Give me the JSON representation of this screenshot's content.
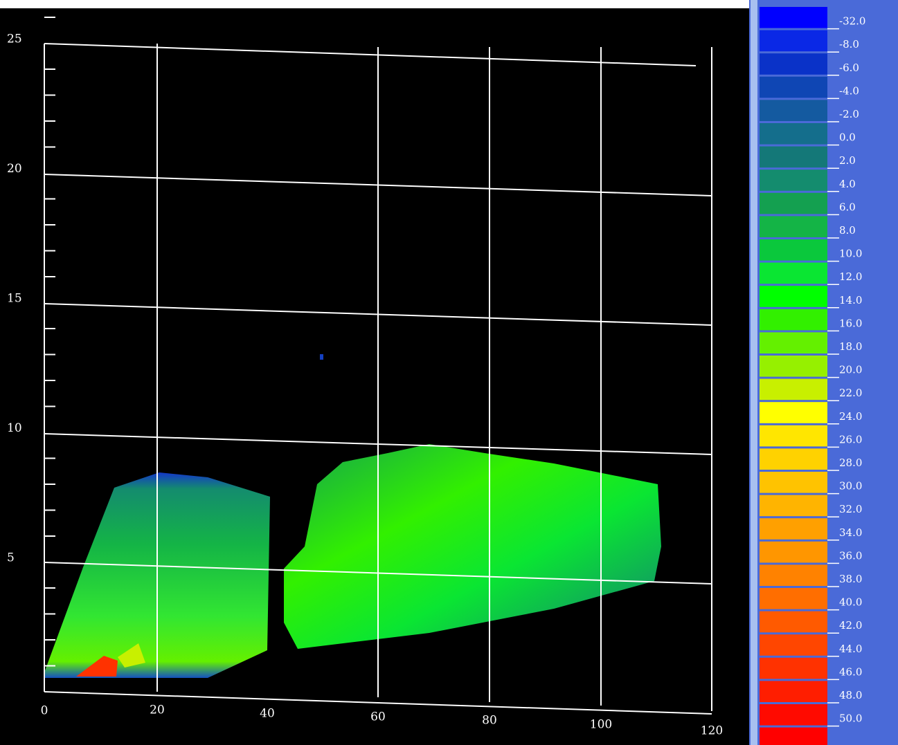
{
  "plot": {
    "x_labels": [
      "0",
      "20",
      "40",
      "60",
      "80",
      "100",
      "120"
    ],
    "y_labels": [
      "25",
      "20",
      "15",
      "10",
      "5"
    ]
  },
  "colorbar": {
    "labels": [
      "-32.0",
      "-8.0",
      "-6.0",
      "-4.0",
      "-2.0",
      "0.0",
      "2.0",
      "4.0",
      "6.0",
      "8.0",
      "10.0",
      "12.0",
      "14.0",
      "16.0",
      "18.0",
      "20.0",
      "22.0",
      "24.0",
      "26.0",
      "28.0",
      "30.0",
      "32.0",
      "34.0",
      "36.0",
      "38.0",
      "40.0",
      "42.0",
      "44.0",
      "46.0",
      "48.0",
      "50.0"
    ],
    "colors": [
      "#0000ff",
      "#0a28e6",
      "#0a32c8",
      "#0f46b4",
      "#145aa0",
      "#146e8c",
      "#147878",
      "#148c6e",
      "#14a050",
      "#14b446",
      "#0ac83c",
      "#0ae632",
      "#00ff00",
      "#32f000",
      "#64f000",
      "#96f000",
      "#c8f000",
      "#ffff00",
      "#ffe600",
      "#ffd200",
      "#ffc300",
      "#ffb400",
      "#ffa000",
      "#ff9600",
      "#ff8200",
      "#ff6e00",
      "#ff5a00",
      "#ff4600",
      "#ff3200",
      "#ff1e00",
      "#ff0a00",
      "#ff0000"
    ]
  }
}
